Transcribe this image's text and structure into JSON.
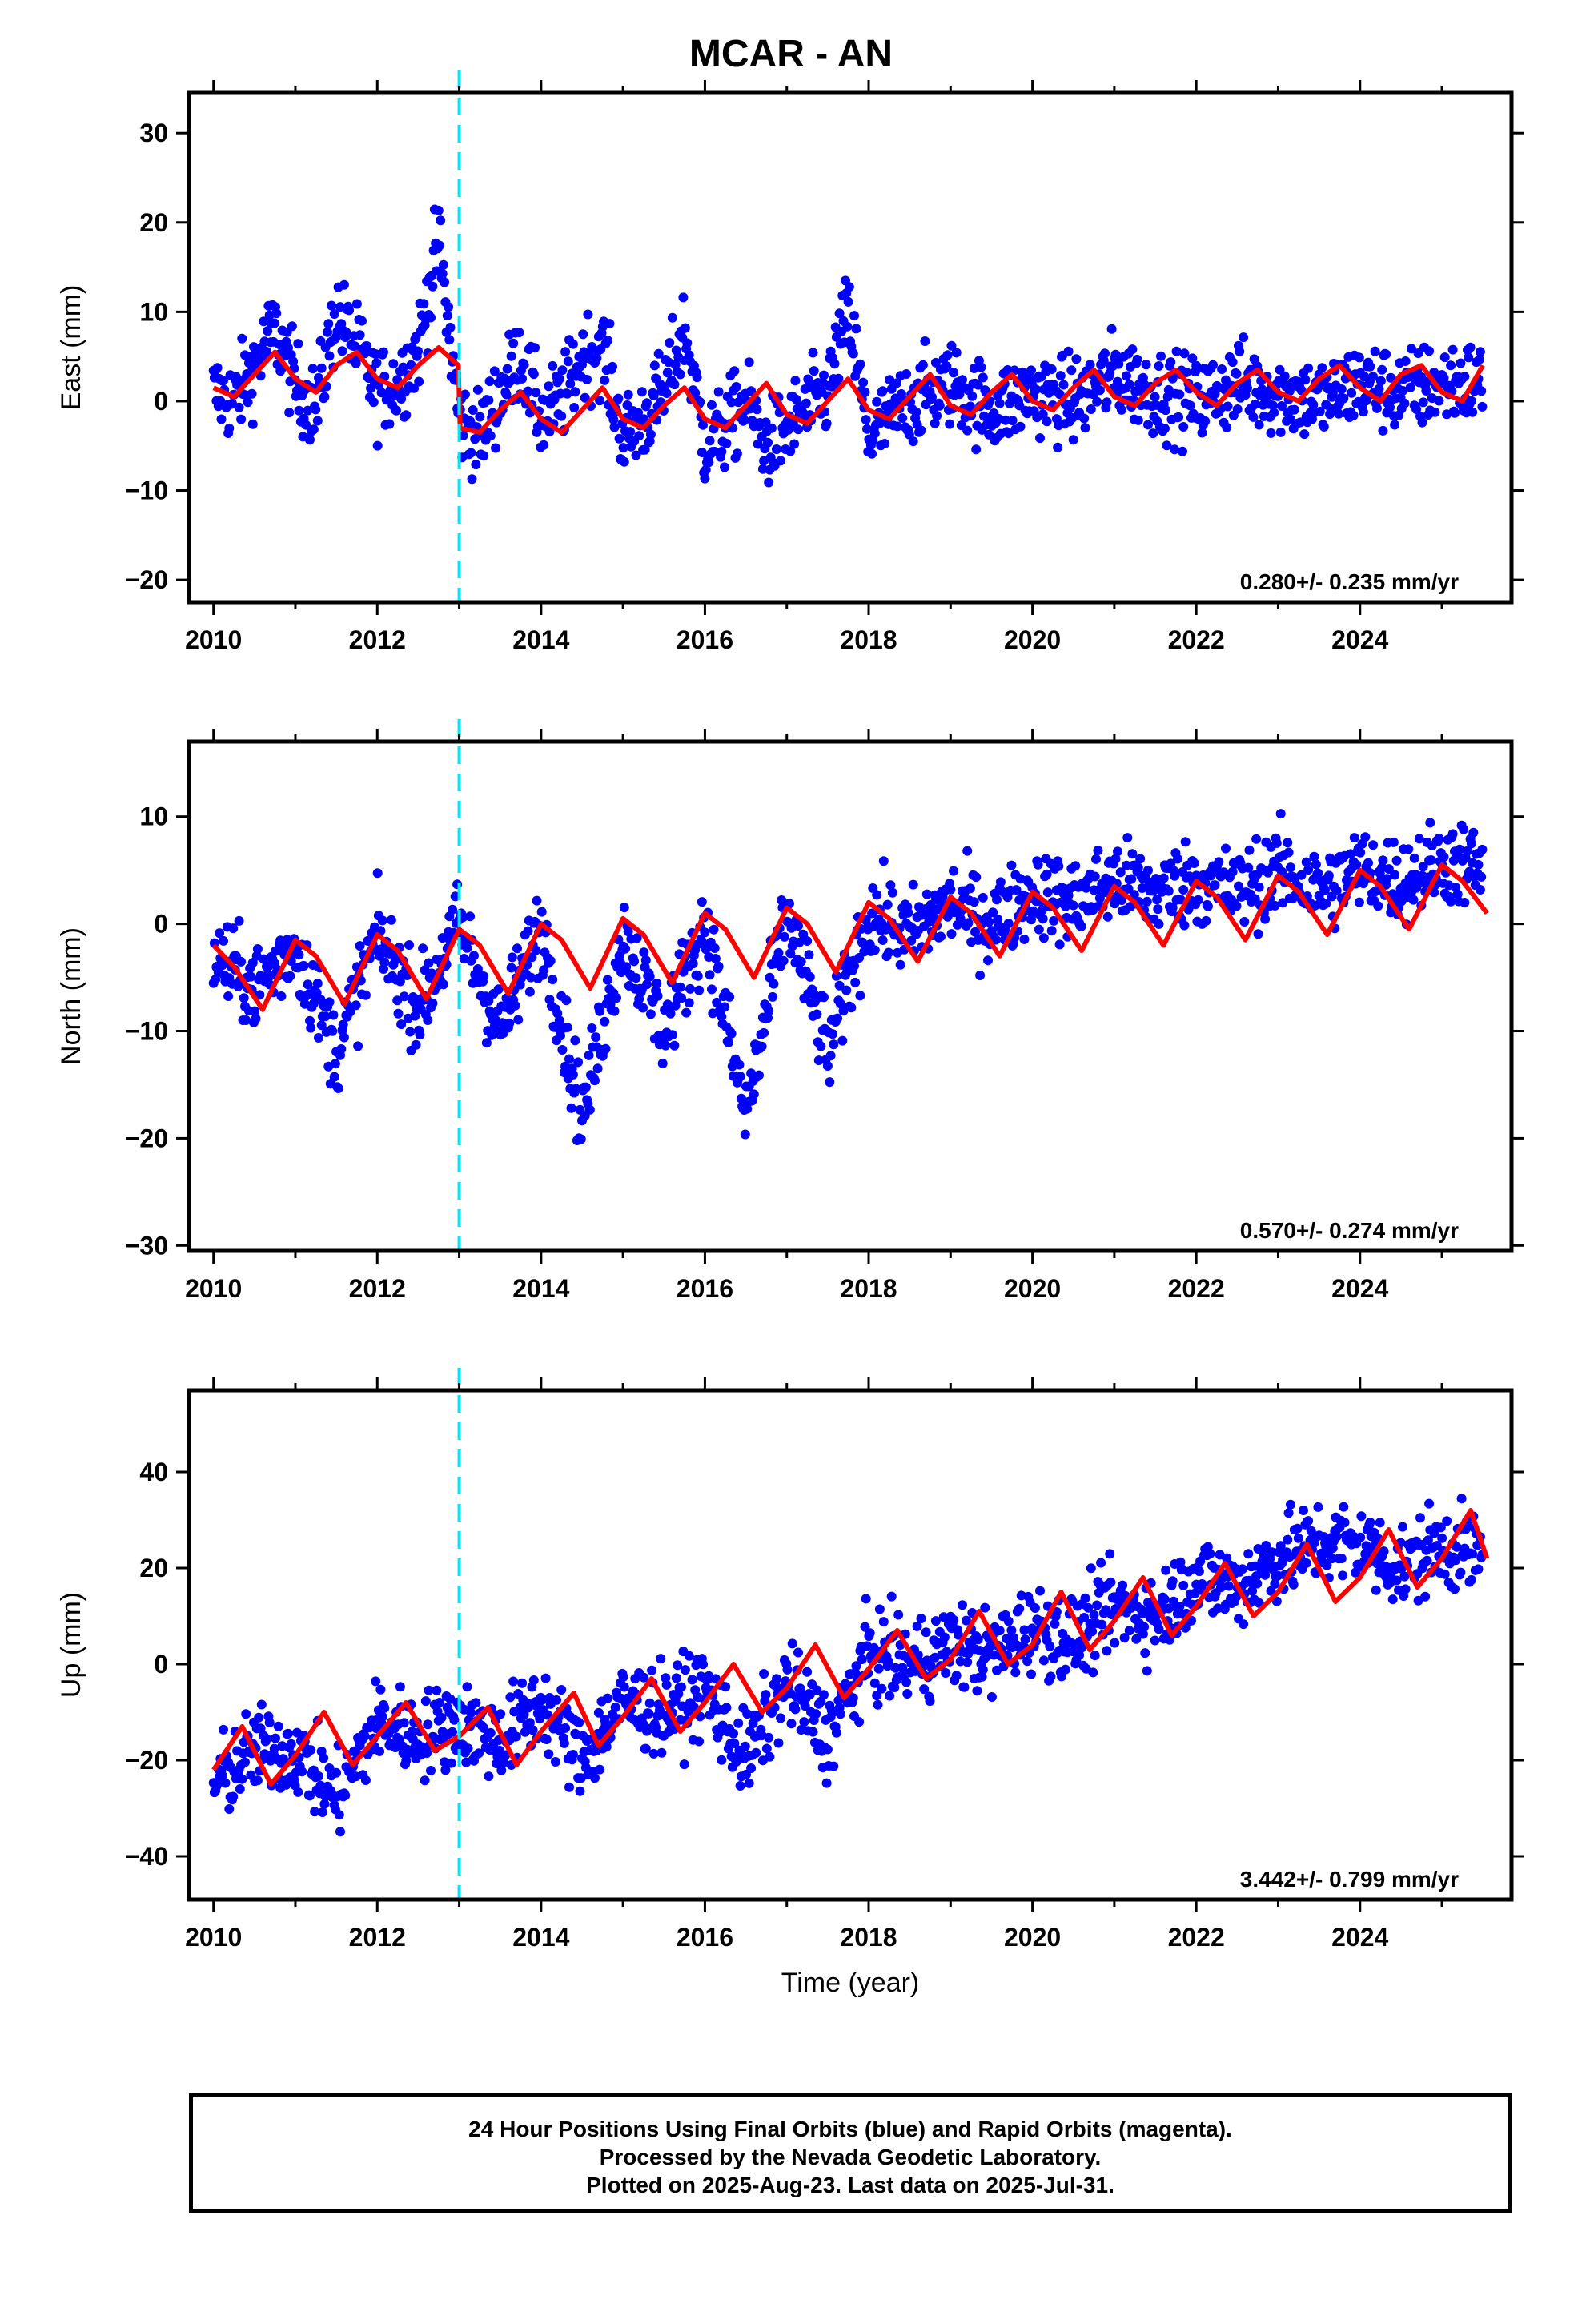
{
  "figure": {
    "title": "MCAR - AN",
    "footer": {
      "line1": "24 Hour Positions Using Final Orbits (blue) and Rapid Orbits (magenta).",
      "line2": "Processed by the Nevada Geodetic Laboratory.",
      "line3": "Plotted on 2025-Aug-23. Last data on 2025-Jul-31."
    },
    "colors": {
      "data_points": "#0000ff",
      "model_fit": "#ff0000",
      "equipment_change_line": "#00e5ff"
    }
  },
  "chart_data": [
    {
      "type": "scatter",
      "component": "East",
      "ylabel": "East (mm)",
      "xlabel": "",
      "xlim": [
        2009.7,
        2025.85
      ],
      "ylim": [
        -22.5,
        34.5
      ],
      "xticks": [
        "2010",
        "2012",
        "2014",
        "2016",
        "2018",
        "2020",
        "2022",
        "2024"
      ],
      "yticks": [
        "30",
        "20",
        "10",
        "0",
        "−10",
        "−20"
      ],
      "rate_label": "0.280+/- 0.235 mm/yr",
      "rate_mm_per_yr": 0.28,
      "rate_sigma": 0.235,
      "equipment_change_year": 2013.0,
      "series": [
        {
          "role": "daily positions",
          "color": "#0000ff",
          "x": [
            2010.0,
            2010.25,
            2010.5,
            2010.75,
            2011.0,
            2011.25,
            2011.5,
            2011.75,
            2012.0,
            2012.25,
            2012.5,
            2012.75,
            2013.0,
            2013.25,
            2013.5,
            2013.75,
            2014.0,
            2014.25,
            2014.5,
            2014.75,
            2015.0,
            2015.25,
            2015.5,
            2015.75,
            2016.0,
            2016.25,
            2016.5,
            2016.75,
            2017.0,
            2017.25,
            2017.5,
            2017.75,
            2018.0,
            2018.5,
            2019.0,
            2019.5,
            2020.0,
            2020.5,
            2021.0,
            2021.5,
            2022.0,
            2022.5,
            2023.0,
            2023.5,
            2024.0,
            2024.5,
            2025.0,
            2025.5
          ],
          "y": [
            1,
            0,
            4,
            8,
            2,
            -1,
            10,
            6,
            1,
            2,
            6,
            18,
            -2,
            -4,
            1,
            5,
            -2,
            0,
            5,
            6,
            -4,
            -2,
            1,
            8,
            -5,
            -3,
            0,
            -5,
            -3,
            -1,
            1,
            10,
            -4,
            0,
            2,
            -1,
            1,
            0,
            3,
            1,
            0,
            2,
            1,
            0,
            2,
            1,
            2,
            2
          ]
        },
        {
          "role": "seasonal fit",
          "color": "#ff0000",
          "x": [
            2010.0,
            2010.25,
            2010.5,
            2010.75,
            2011.0,
            2011.25,
            2011.5,
            2011.75,
            2012.0,
            2012.25,
            2012.5,
            2012.75,
            2012.99,
            2013.01,
            2013.25,
            2013.5,
            2013.75,
            2014.0,
            2014.25,
            2014.5,
            2014.75,
            2015.0,
            2015.25,
            2015.5,
            2015.75,
            2016.0,
            2016.25,
            2016.5,
            2016.75,
            2017.0,
            2017.25,
            2017.5,
            2017.75,
            2018.0,
            2018.25,
            2018.5,
            2018.75,
            2019.0,
            2019.25,
            2019.5,
            2019.75,
            2020.0,
            2020.25,
            2020.5,
            2020.75,
            2021.0,
            2021.25,
            2021.5,
            2021.75,
            2022.0,
            2022.25,
            2022.5,
            2022.75,
            2023.0,
            2023.25,
            2023.5,
            2023.75,
            2024.0,
            2024.25,
            2024.5,
            2024.75,
            2025.0,
            2025.25,
            2025.5
          ],
          "y": [
            1.5,
            0.5,
            3,
            5.5,
            2.5,
            1,
            4,
            5.5,
            2.5,
            1.5,
            4,
            6,
            4,
            -3,
            -3.5,
            -1,
            1,
            -2,
            -3.5,
            -1,
            1.5,
            -2,
            -3,
            -0.5,
            1.5,
            -2,
            -3,
            -0.5,
            2,
            -1.5,
            -2.5,
            0,
            2.5,
            -1,
            -2,
            0.5,
            3,
            -0.5,
            -1.5,
            1,
            3,
            0,
            -1,
            1.5,
            3.5,
            0.5,
            -0.5,
            2,
            3.5,
            1,
            -0.5,
            2,
            3.5,
            1,
            0,
            2.5,
            4,
            1.5,
            0,
            3,
            4,
            1,
            0,
            4
          ]
        }
      ]
    },
    {
      "type": "scatter",
      "component": "North",
      "ylabel": "North (mm)",
      "xlabel": "",
      "xlim": [
        2009.7,
        2025.85
      ],
      "ylim": [
        -30.5,
        17
      ],
      "xticks": [
        "2010",
        "2012",
        "2014",
        "2016",
        "2018",
        "2020",
        "2022",
        "2024"
      ],
      "yticks": [
        "10",
        "0",
        "−10",
        "−20",
        "−30"
      ],
      "rate_label": "0.570+/- 0.274 mm/yr",
      "rate_mm_per_yr": 0.57,
      "rate_sigma": 0.274,
      "equipment_change_year": 2013.0,
      "series": [
        {
          "role": "daily positions",
          "color": "#0000ff",
          "x": [
            2010.0,
            2010.5,
            2011.0,
            2011.5,
            2012.0,
            2012.5,
            2013.0,
            2013.5,
            2014.0,
            2014.5,
            2015.0,
            2015.5,
            2016.0,
            2016.5,
            2017.0,
            2017.5,
            2018.0,
            2018.5,
            2019.0,
            2019.5,
            2020.0,
            2020.5,
            2021.0,
            2021.5,
            2022.0,
            2022.5,
            2023.0,
            2023.5,
            2024.0,
            2024.5,
            2025.0,
            2025.5
          ],
          "y": [
            -3,
            -6,
            -2,
            -12,
            -1,
            -8,
            0,
            -10,
            0,
            -18,
            -1,
            -10,
            0,
            -18,
            1,
            -12,
            1,
            -1,
            2,
            0,
            3,
            2,
            4,
            3,
            4,
            3,
            5,
            3,
            5,
            4,
            6,
            5
          ]
        },
        {
          "role": "seasonal fit",
          "color": "#ff0000",
          "x": [
            2010.0,
            2010.25,
            2010.6,
            2011.0,
            2011.25,
            2011.6,
            2012.0,
            2012.25,
            2012.6,
            2013.0,
            2013.25,
            2013.6,
            2014.0,
            2014.25,
            2014.6,
            2015.0,
            2015.25,
            2015.6,
            2016.0,
            2016.25,
            2016.6,
            2017.0,
            2017.25,
            2017.6,
            2018.0,
            2018.25,
            2018.6,
            2019.0,
            2019.25,
            2019.6,
            2020.0,
            2020.25,
            2020.6,
            2021.0,
            2021.25,
            2021.6,
            2022.0,
            2022.25,
            2022.6,
            2023.0,
            2023.25,
            2023.6,
            2024.0,
            2024.25,
            2024.6,
            2025.0,
            2025.25,
            2025.55
          ],
          "y": [
            -2,
            -4,
            -8,
            -1.5,
            -3,
            -7.5,
            -1,
            -2.5,
            -7,
            -0.5,
            -2,
            -6.5,
            0,
            -1.5,
            -6,
            0.5,
            -1,
            -5.5,
            1,
            -0.5,
            -5,
            1.5,
            0,
            -4.5,
            2,
            0.5,
            -3.5,
            2.5,
            1,
            -3,
            3,
            1.5,
            -2.5,
            3.5,
            2,
            -2,
            4,
            2.5,
            -1.5,
            4.5,
            3,
            -1,
            5,
            3.5,
            -0.5,
            5.5,
            4,
            1
          ]
        }
      ]
    },
    {
      "type": "scatter",
      "component": "Up",
      "ylabel": "Up (mm)",
      "xlabel": "Time (year)",
      "xlim": [
        2009.7,
        2025.85
      ],
      "ylim": [
        -49,
        57
      ],
      "xticks": [
        "2010",
        "2012",
        "2014",
        "2016",
        "2018",
        "2020",
        "2022",
        "2024"
      ],
      "yticks": [
        "40",
        "20",
        "0",
        "−20",
        "−40"
      ],
      "rate_label": "3.442+/- 0.799 mm/yr",
      "rate_mm_per_yr": 3.442,
      "rate_sigma": 0.799,
      "equipment_change_year": 2013.0,
      "series": [
        {
          "role": "daily positions",
          "color": "#0000ff",
          "x": [
            2010.0,
            2010.5,
            2011.0,
            2011.5,
            2012.0,
            2012.5,
            2013.0,
            2013.5,
            2014.0,
            2014.5,
            2015.0,
            2015.5,
            2016.0,
            2016.5,
            2017.0,
            2017.5,
            2018.0,
            2018.5,
            2019.0,
            2019.5,
            2020.0,
            2020.5,
            2021.0,
            2021.5,
            2022.0,
            2022.5,
            2023.0,
            2023.5,
            2024.0,
            2024.5,
            2025.0,
            2025.5
          ],
          "y": [
            -25,
            -18,
            -18,
            -28,
            -12,
            -15,
            -12,
            -16,
            -8,
            -20,
            -8,
            -10,
            -5,
            -20,
            -4,
            -15,
            2,
            0,
            4,
            2,
            8,
            5,
            12,
            10,
            18,
            16,
            22,
            25,
            25,
            20,
            25,
            22
          ]
        },
        {
          "role": "seasonal fit",
          "color": "#ff0000",
          "x": [
            2010.0,
            2010.35,
            2010.7,
            2011.0,
            2011.35,
            2011.7,
            2012.0,
            2012.35,
            2012.7,
            2013.0,
            2013.35,
            2013.7,
            2014.0,
            2014.4,
            2014.7,
            2015.0,
            2015.35,
            2015.7,
            2016.0,
            2016.35,
            2016.7,
            2017.0,
            2017.35,
            2017.7,
            2018.0,
            2018.35,
            2018.7,
            2019.0,
            2019.35,
            2019.7,
            2020.0,
            2020.35,
            2020.7,
            2021.0,
            2021.35,
            2021.7,
            2022.0,
            2022.35,
            2022.7,
            2023.0,
            2023.35,
            2023.7,
            2024.0,
            2024.35,
            2024.7,
            2025.0,
            2025.35,
            2025.55
          ],
          "y": [
            -22,
            -13,
            -25,
            -19,
            -10,
            -21,
            -15,
            -8,
            -18,
            -15,
            -9,
            -21,
            -14,
            -6,
            -17,
            -11,
            -3,
            -14,
            -8,
            0,
            -10,
            -5,
            4,
            -7,
            -1,
            7,
            -3,
            1,
            11,
            0,
            4,
            15,
            3,
            9,
            18,
            6,
            12,
            21,
            10,
            15,
            25,
            13,
            18,
            28,
            16,
            22,
            32,
            22
          ]
        }
      ]
    }
  ]
}
